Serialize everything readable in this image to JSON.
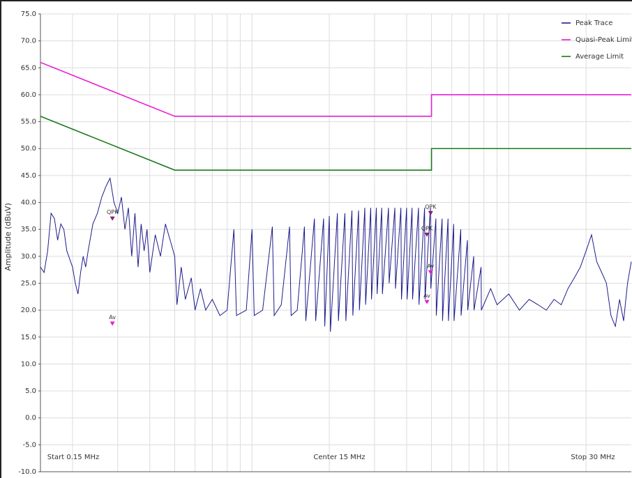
{
  "chart_data": {
    "type": "line",
    "ylabel": "Amplitude (dBuV)",
    "xscale": "log",
    "xlim": [
      0.15,
      30
    ],
    "ylim": [
      -10,
      75
    ],
    "yticks": [
      {
        "value": 75,
        "label": "75.0"
      },
      {
        "value": 70,
        "label": "70.0"
      },
      {
        "value": 65,
        "label": "65.0"
      },
      {
        "value": 60,
        "label": "60.0"
      },
      {
        "value": 55,
        "label": "55.0"
      },
      {
        "value": 50,
        "label": "50.0"
      },
      {
        "value": 45,
        "label": "45.0"
      },
      {
        "value": 40,
        "label": "40.0"
      },
      {
        "value": 35,
        "label": "35.0"
      },
      {
        "value": 30,
        "label": "30.0"
      },
      {
        "value": 25,
        "label": "25.0"
      },
      {
        "value": 20,
        "label": "20.0"
      },
      {
        "value": 15,
        "label": "15.0"
      },
      {
        "value": 10,
        "label": "10.0"
      },
      {
        "value": 5,
        "label": "5.0"
      },
      {
        "value": 0,
        "label": "0.0"
      },
      {
        "value": -5,
        "label": "-5.0"
      },
      {
        "value": -10,
        "label": "-10.0"
      }
    ],
    "grid": true,
    "legend": "upper right",
    "annotations": [
      "Start 0.15 MHz",
      "Center 15 MHz",
      "Stop 30 MHz"
    ],
    "series": [
      {
        "name": "Peak Trace",
        "color": "#1c1c8c",
        "x": [
          0.15,
          0.155,
          0.16,
          0.165,
          0.17,
          0.175,
          0.18,
          0.185,
          0.19,
          0.2,
          0.205,
          0.21,
          0.215,
          0.22,
          0.225,
          0.23,
          0.24,
          0.25,
          0.26,
          0.27,
          0.28,
          0.29,
          0.3,
          0.31,
          0.32,
          0.33,
          0.34,
          0.35,
          0.36,
          0.37,
          0.38,
          0.39,
          0.4,
          0.42,
          0.44,
          0.46,
          0.48,
          0.5,
          0.51,
          0.53,
          0.55,
          0.58,
          0.6,
          0.63,
          0.66,
          0.7,
          0.75,
          0.8,
          0.85,
          0.87,
          0.95,
          1.0,
          1.02,
          1.1,
          1.2,
          1.22,
          1.3,
          1.4,
          1.42,
          1.5,
          1.6,
          1.62,
          1.75,
          1.77,
          1.9,
          1.92,
          2.0,
          2.02,
          2.15,
          2.17,
          2.3,
          2.32,
          2.45,
          2.47,
          2.6,
          2.62,
          2.75,
          2.77,
          2.9,
          2.92,
          3.05,
          3.07,
          3.2,
          3.22,
          3.4,
          3.42,
          3.6,
          3.62,
          3.8,
          3.82,
          4.0,
          4.02,
          4.2,
          4.22,
          4.45,
          4.47,
          4.7,
          4.72,
          4.95,
          4.97,
          5.2,
          5.22,
          5.5,
          5.52,
          5.8,
          5.82,
          6.1,
          6.12,
          6.5,
          6.52,
          6.9,
          6.92,
          7.3,
          7.32,
          7.8,
          7.82,
          8.5,
          9,
          10,
          11,
          12,
          13,
          14,
          15,
          16,
          17,
          18,
          19,
          20,
          21,
          22,
          23,
          24,
          25,
          26,
          27,
          28,
          29,
          30
        ],
        "values": [
          28,
          27,
          31,
          38,
          37,
          33,
          36,
          35,
          31,
          28,
          25,
          23,
          27,
          30,
          28,
          31,
          36,
          38,
          41,
          43,
          44.5,
          40,
          38,
          41,
          35,
          39,
          30,
          38,
          28,
          36,
          31,
          35,
          27,
          34,
          30,
          36,
          33,
          30,
          21,
          28,
          22,
          26,
          20,
          24,
          20,
          22,
          19,
          20,
          35,
          19,
          20,
          35,
          19,
          20,
          35.5,
          19,
          21,
          35.5,
          19,
          20,
          35.5,
          18,
          37,
          18,
          37,
          17,
          37.5,
          16,
          38,
          18,
          38,
          18,
          38.5,
          19,
          38.5,
          20,
          39,
          21,
          39,
          22,
          39,
          23,
          39,
          23,
          39,
          25,
          39,
          24,
          39,
          22,
          39,
          22,
          39,
          22,
          39,
          21,
          39,
          22,
          39,
          24,
          37,
          19,
          37,
          18,
          37,
          18,
          36,
          18,
          35,
          19,
          33,
          20,
          30,
          20,
          28,
          20,
          24,
          21,
          23,
          20,
          22,
          21,
          20,
          22,
          21,
          24,
          26,
          28,
          31,
          34,
          29,
          27,
          25,
          19,
          17,
          22,
          18,
          25,
          29
        ]
      },
      {
        "name": "Quasi-Peak Limit",
        "color": "#e61ed2",
        "x": [
          0.15,
          0.5,
          5,
          5,
          30
        ],
        "values": [
          66,
          56,
          56,
          60,
          60
        ]
      },
      {
        "name": "Average Limit",
        "color": "#1a7a1a",
        "x": [
          0.15,
          0.5,
          5,
          5,
          30
        ],
        "values": [
          56,
          46,
          46,
          50,
          50
        ]
      }
    ],
    "markers": [
      {
        "label": "QPK",
        "x": 0.286,
        "y": 37,
        "color": "#8c1a7a"
      },
      {
        "label": "Av",
        "x": 0.286,
        "y": 17.5,
        "color": "#e61ed2"
      },
      {
        "label": "QPK",
        "x": 4.96,
        "y": 38,
        "color": "#8c1a7a"
      },
      {
        "label": "QPK",
        "x": 4.8,
        "y": 34,
        "color": "#8c1a7a"
      },
      {
        "label": "Av",
        "x": 4.96,
        "y": 27,
        "color": "#e61ed2"
      },
      {
        "label": "Av",
        "x": 4.8,
        "y": 21.5,
        "color": "#e61ed2"
      }
    ]
  }
}
